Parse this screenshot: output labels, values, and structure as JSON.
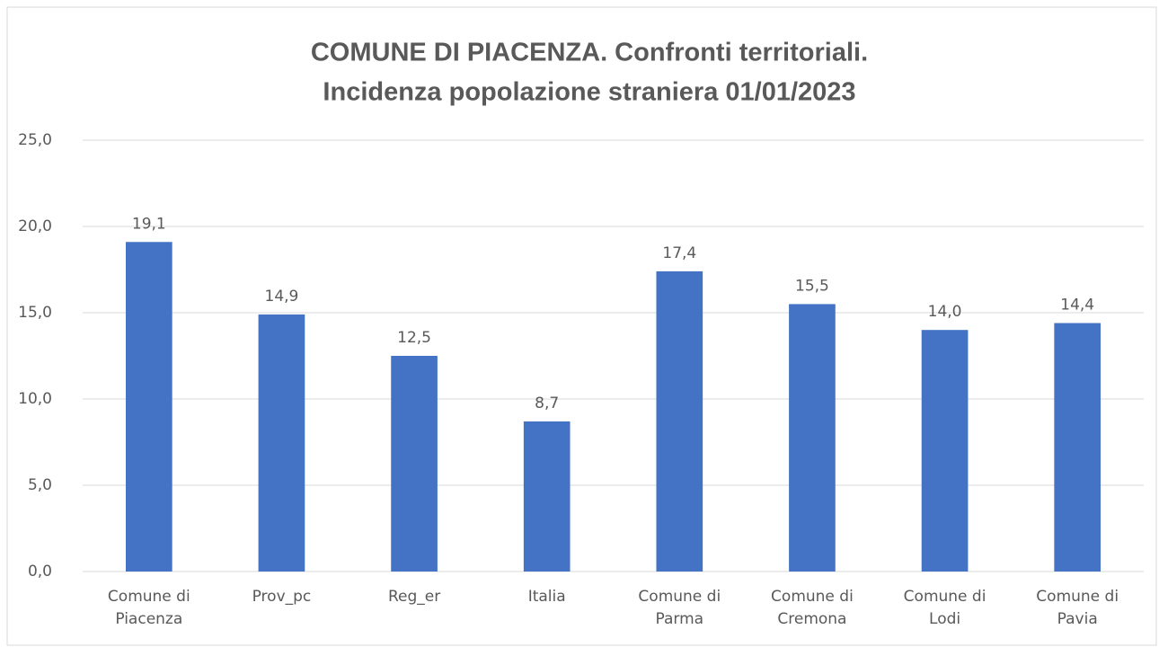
{
  "chart_data": {
    "type": "bar",
    "title": [
      "COMUNE DI PIACENZA. Confronti territoriali.",
      "Incidenza popolazione straniera 01/01/2023"
    ],
    "categories": [
      "Comune di Piacenza",
      "Prov_pc",
      "Reg_er",
      "Italia",
      "Comune di Parma",
      "Comune di Cremona",
      "Comune di Lodi",
      "Comune di Pavia"
    ],
    "values": [
      19.1,
      14.9,
      12.5,
      8.7,
      17.4,
      15.5,
      14.0,
      14.4
    ],
    "value_labels": [
      "19,1",
      "14,9",
      "12,5",
      "8,7",
      "17,4",
      "15,5",
      "14,0",
      "14,4"
    ],
    "color": "#4472c4",
    "ylim": [
      0,
      25
    ],
    "yticks": [
      {
        "value": 0,
        "label": "0,0"
      },
      {
        "value": 5,
        "label": "5,0"
      },
      {
        "value": 10,
        "label": "10,0"
      },
      {
        "value": 15,
        "label": "15,0"
      },
      {
        "value": 20,
        "label": "20,0"
      },
      {
        "value": 25,
        "label": "25,0"
      }
    ],
    "grid": true
  }
}
